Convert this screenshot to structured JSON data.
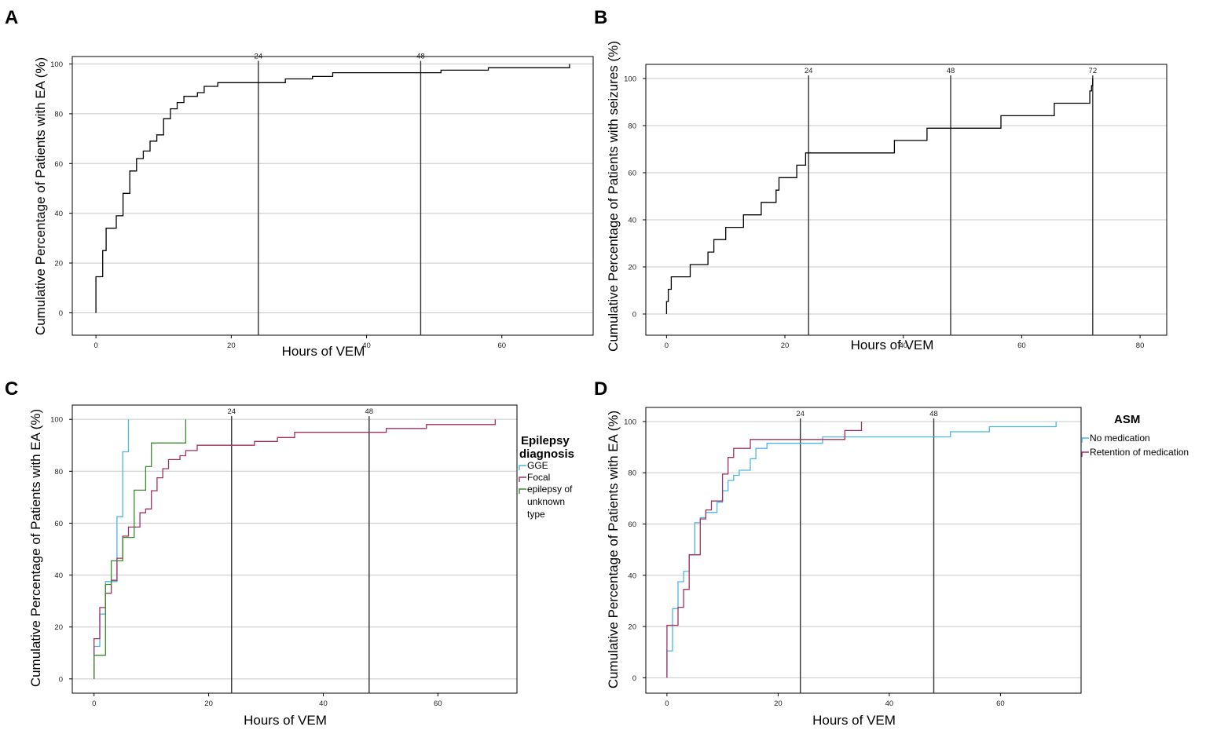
{
  "chart_data": [
    {
      "panel": "A",
      "type": "line",
      "ylabel": "Cumulative Percentage of Patients with EA (%)",
      "xlabel": "Hours of VEM",
      "xlim": [
        -3.5,
        73.5
      ],
      "ylim": [
        -9,
        103
      ],
      "xticks": [
        0,
        20,
        40,
        60
      ],
      "yticks": [
        0,
        20,
        40,
        60,
        80,
        100
      ],
      "grid": "horizontal",
      "ref_lines": [
        24,
        48
      ],
      "legend": null,
      "series": [
        {
          "name": "",
          "color": "#000000",
          "x": [
            0,
            0,
            1,
            1.5,
            3,
            4,
            5,
            6,
            7,
            8,
            9,
            10,
            11,
            12,
            13,
            15,
            16,
            18,
            28,
            32,
            35,
            51,
            58,
            70,
            70
          ],
          "y": [
            0,
            14.5,
            25,
            34,
            39,
            48,
            57,
            62,
            65,
            69,
            71.5,
            78,
            82,
            84.5,
            87,
            88.5,
            91,
            92.5,
            94,
            95,
            96.5,
            97.5,
            98.5,
            98.5,
            100
          ]
        }
      ]
    },
    {
      "panel": "B",
      "type": "line",
      "ylabel": "Cumulative Percentage of Patients with seizures (%)",
      "xlabel": "Hours of VEM",
      "xlim": [
        -3.5,
        84.5
      ],
      "ylim": [
        -9,
        106
      ],
      "xticks": [
        0,
        20,
        40,
        60,
        80
      ],
      "yticks": [
        0,
        20,
        40,
        60,
        80,
        100
      ],
      "grid": "horizontal",
      "ref_lines": [
        24,
        48,
        72
      ],
      "legend": null,
      "series": [
        {
          "name": "",
          "color": "#000000",
          "x": [
            0,
            0,
            0.3,
            0.8,
            4,
            7,
            8,
            10,
            13,
            16,
            18.5,
            19,
            22,
            23.5,
            38.5,
            44,
            56.5,
            65.5,
            71.5,
            71.8,
            72
          ],
          "y": [
            0,
            5.3,
            10.5,
            15.8,
            21,
            26.3,
            31.6,
            36.8,
            42.1,
            47.4,
            52.6,
            57.9,
            63.2,
            68.4,
            73.7,
            78.9,
            84.2,
            89.5,
            94.7,
            97,
            100
          ]
        }
      ]
    },
    {
      "panel": "C",
      "type": "line",
      "ylabel": "Cumulative Percentage of Patients with EA (%)",
      "xlabel": "Hours of VEM",
      "xlim": [
        -3.8,
        73.8
      ],
      "ylim": [
        -5.5,
        105.5
      ],
      "xticks": [
        0,
        20,
        40,
        60
      ],
      "yticks": [
        0,
        20,
        40,
        60,
        80,
        100
      ],
      "grid": "horizontal",
      "ref_lines": [
        24,
        48
      ],
      "legend": {
        "title": "Epilepsy diagnosis",
        "position": "right"
      },
      "series": [
        {
          "name": "GGE",
          "color": "#4bb5e3",
          "x": [
            0,
            0,
            1,
            2,
            4,
            5,
            6
          ],
          "y": [
            0,
            12.5,
            25,
            37.5,
            62.5,
            87.5,
            100
          ]
        },
        {
          "name": "Focal",
          "color": "#a03060",
          "x": [
            0,
            0,
            1,
            2,
            3,
            4,
            5,
            6,
            7,
            8,
            9,
            10,
            11,
            12,
            13,
            15,
            16,
            18,
            28,
            32,
            35,
            51,
            58,
            70,
            70
          ],
          "y": [
            0,
            15.5,
            27.5,
            33,
            38,
            46.5,
            55,
            58.5,
            58.5,
            64,
            65.5,
            72.5,
            77.5,
            81,
            84.5,
            86,
            88,
            90,
            91.5,
            93,
            95,
            96.5,
            98,
            98,
            100
          ]
        },
        {
          "name": "epilepsy of unknown type",
          "color": "#3a8a2e",
          "x": [
            0,
            0,
            2,
            3,
            5,
            7,
            9,
            10,
            16
          ],
          "y": [
            0,
            9.1,
            36.4,
            45.5,
            54.5,
            72.7,
            81.8,
            90.9,
            100
          ]
        }
      ]
    },
    {
      "panel": "D",
      "type": "line",
      "ylabel": "Cumulative Percentage of Patients with EA (%)",
      "xlabel": "Hours of VEM",
      "xlim": [
        -3.8,
        74.5
      ],
      "ylim": [
        -6,
        105.5
      ],
      "xticks": [
        0,
        20,
        40,
        60
      ],
      "yticks": [
        0,
        20,
        40,
        60,
        80,
        100
      ],
      "grid": "horizontal",
      "ref_lines": [
        24,
        48
      ],
      "legend": {
        "title": "ASM",
        "position": "right"
      },
      "series": [
        {
          "name": "No medication",
          "color": "#4bb5e3",
          "x": [
            0,
            0,
            1,
            2,
            3,
            4,
            5,
            6,
            7,
            9,
            10,
            11,
            12,
            13,
            15,
            16,
            18,
            28,
            51,
            58,
            70,
            70
          ],
          "y": [
            0,
            10.5,
            27,
            37.5,
            41.5,
            48,
            60.5,
            62.5,
            64.5,
            68.5,
            73,
            77,
            79,
            81,
            85.5,
            89.5,
            91.5,
            94,
            96,
            98,
            98,
            100
          ]
        },
        {
          "name": "Retention of medication",
          "color": "#a03060",
          "x": [
            0,
            0,
            2,
            3,
            4,
            6,
            7,
            8,
            10,
            11,
            12,
            15,
            32,
            35
          ],
          "y": [
            0,
            20.5,
            27.5,
            34.5,
            48,
            62,
            65.5,
            69,
            79.5,
            86,
            89.5,
            93,
            96.5,
            100
          ]
        }
      ]
    }
  ],
  "panel_letters": [
    "A",
    "B",
    "C",
    "D"
  ],
  "legends": {
    "C": {
      "title_line1": "Epilepsy",
      "title_line2": "diagnosis",
      "items": [
        "GGE",
        "Focal",
        "epilepsy of",
        "unknown",
        "type"
      ]
    },
    "D": {
      "title": "ASM",
      "items": [
        "No medication",
        "Retention of medication"
      ]
    }
  },
  "colors": {
    "axis": "#000000",
    "grid": "#c8c8c8",
    "ref_line": "#333333"
  }
}
